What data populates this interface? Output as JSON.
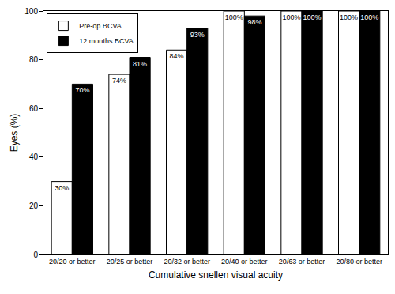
{
  "chart_data": {
    "type": "bar",
    "x_label": "Cumulative snellen visual acuity",
    "y_label": "Eyes (%)",
    "categories": [
      "20/20 or better",
      "20/25 or better",
      "20/32 or better",
      "20/40 or better",
      "20/63 or better",
      "20/80 or better"
    ],
    "series": [
      {
        "name": "Pre-op BCVA",
        "color": "#ffffff",
        "values": [
          30,
          74,
          84,
          100,
          100,
          100
        ],
        "value_labels": [
          "30%",
          "74%",
          "84%",
          "100%",
          "100%",
          "100%"
        ]
      },
      {
        "name": "12 months BCVA",
        "color": "#000000",
        "values": [
          70,
          81,
          93,
          98,
          100,
          100
        ],
        "value_labels": [
          "70%",
          "81%",
          "93%",
          "98%",
          "100%",
          "100%"
        ]
      }
    ],
    "ylim": [
      0,
      100
    ],
    "yticks": [
      0,
      20,
      40,
      60,
      80,
      100
    ],
    "grid": false,
    "legend": "top left",
    "data_labels": true
  }
}
